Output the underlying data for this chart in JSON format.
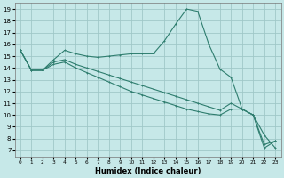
{
  "xlabel": "Humidex (Indice chaleur)",
  "bg_color": "#c6e8e8",
  "grid_color": "#a0c8c8",
  "line_color": "#2e7d6e",
  "xlim": [
    -0.5,
    23.5
  ],
  "ylim": [
    6.5,
    19.5
  ],
  "yticks": [
    7,
    8,
    9,
    10,
    11,
    12,
    13,
    14,
    15,
    16,
    17,
    18,
    19
  ],
  "xticks": [
    0,
    1,
    2,
    3,
    4,
    5,
    6,
    7,
    8,
    9,
    10,
    11,
    12,
    13,
    14,
    15,
    16,
    17,
    18,
    19,
    20,
    21,
    22,
    23
  ],
  "series1": [
    [
      0,
      15.5
    ],
    [
      1,
      13.8
    ],
    [
      2,
      13.8
    ],
    [
      3,
      14.7
    ],
    [
      4,
      15.5
    ],
    [
      5,
      15.2
    ],
    [
      6,
      15.0
    ],
    [
      7,
      14.9
    ],
    [
      8,
      15.0
    ],
    [
      9,
      15.1
    ],
    [
      10,
      15.2
    ],
    [
      11,
      15.2
    ],
    [
      12,
      15.2
    ],
    [
      13,
      16.3
    ],
    [
      14,
      17.7
    ],
    [
      15,
      19.0
    ],
    [
      16,
      18.8
    ],
    [
      17,
      16.0
    ],
    [
      18,
      13.9
    ],
    [
      19,
      13.2
    ],
    [
      20,
      10.5
    ],
    [
      21,
      10.0
    ],
    [
      22,
      8.3
    ],
    [
      23,
      7.2
    ]
  ],
  "series2": [
    [
      0,
      15.5
    ],
    [
      1,
      13.8
    ],
    [
      2,
      13.8
    ],
    [
      3,
      14.5
    ],
    [
      4,
      14.7
    ],
    [
      5,
      14.3
    ],
    [
      6,
      14.0
    ],
    [
      7,
      13.7
    ],
    [
      8,
      13.4
    ],
    [
      9,
      13.1
    ],
    [
      10,
      12.8
    ],
    [
      11,
      12.5
    ],
    [
      12,
      12.2
    ],
    [
      13,
      11.9
    ],
    [
      14,
      11.6
    ],
    [
      15,
      11.3
    ],
    [
      16,
      11.0
    ],
    [
      17,
      10.7
    ],
    [
      18,
      10.4
    ],
    [
      19,
      11.0
    ],
    [
      20,
      10.5
    ],
    [
      21,
      10.0
    ],
    [
      22,
      7.5
    ],
    [
      23,
      7.8
    ]
  ],
  "series3": [
    [
      0,
      15.5
    ],
    [
      1,
      13.8
    ],
    [
      2,
      13.8
    ],
    [
      3,
      14.3
    ],
    [
      4,
      14.5
    ],
    [
      5,
      14.0
    ],
    [
      6,
      13.6
    ],
    [
      7,
      13.2
    ],
    [
      8,
      12.8
    ],
    [
      9,
      12.4
    ],
    [
      10,
      12.0
    ],
    [
      11,
      11.7
    ],
    [
      12,
      11.4
    ],
    [
      13,
      11.1
    ],
    [
      14,
      10.8
    ],
    [
      15,
      10.5
    ],
    [
      16,
      10.3
    ],
    [
      17,
      10.1
    ],
    [
      18,
      10.0
    ],
    [
      19,
      10.5
    ],
    [
      20,
      10.5
    ],
    [
      21,
      10.0
    ],
    [
      22,
      7.2
    ],
    [
      23,
      7.8
    ]
  ]
}
